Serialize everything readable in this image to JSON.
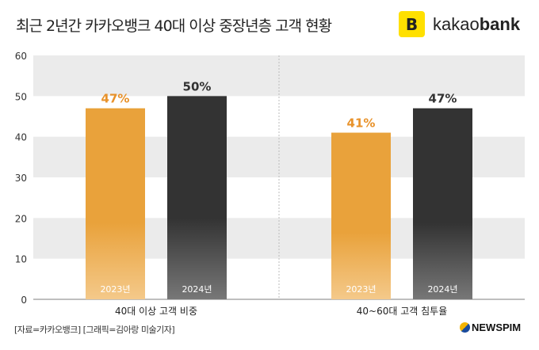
{
  "title": "최근 2년간 카카오뱅크 40대 이상 중장년층 고객 현황",
  "logo": {
    "mark": "B",
    "text_light": "kakao",
    "text_bold": "bank"
  },
  "source": "[자료=카카오뱅크] [그래픽=김아랑 미술기자]",
  "publisher": "NEWSPIM",
  "colors": {
    "orange": "#e9a23b",
    "dark": "#333333",
    "band": "#ebebeb",
    "label_orange": "#e8922a"
  },
  "chart_data": {
    "type": "bar",
    "categories": [
      "40대 이상 고객 비중",
      "40~60대 고객 침투율"
    ],
    "series": [
      {
        "name": "2023년",
        "values": [
          47,
          41
        ]
      },
      {
        "name": "2024년",
        "values": [
          50,
          47
        ]
      }
    ],
    "data_labels": [
      [
        "47%",
        "50%"
      ],
      [
        "41%",
        "47%"
      ]
    ],
    "yticks": [
      0,
      10,
      20,
      30,
      40,
      50,
      60
    ],
    "ylim": [
      0,
      60
    ],
    "grid": "alternating bands"
  }
}
